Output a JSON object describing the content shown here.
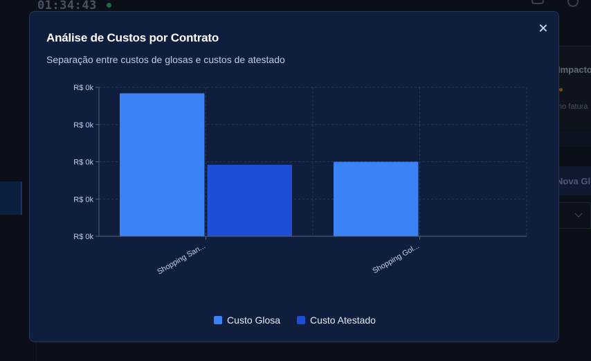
{
  "background": {
    "clock": "01:34:43",
    "panel_heading": "Impacto",
    "panel_text": "no fatura",
    "button_text": "Nova Gl"
  },
  "modal": {
    "title": "Análise de Custos por Contrato",
    "subtitle": "Separação entre custos de glosas e custos de atestado",
    "close_icon": "close-icon"
  },
  "colors": {
    "modal_bg": "#0f1e3d",
    "glosa": "#3b82f6",
    "atestado": "#1d4ed8",
    "grid": "#2b3b5c",
    "axis": "#5b6478",
    "tick_text": "#bcd0f0"
  },
  "chart_data": {
    "type": "bar",
    "categories": [
      "Shopping San...",
      "Shopping Gol..."
    ],
    "series": [
      {
        "name": "Custo Glosa",
        "color": "#3b82f6",
        "values": [
          0.96,
          0.5
        ]
      },
      {
        "name": "Custo Atestado",
        "color": "#1d4ed8",
        "values": [
          0.48,
          0
        ]
      }
    ],
    "yticks": [
      "R$ 0k",
      "R$ 0k",
      "R$ 0k",
      "R$ 0k",
      "R$ 0k"
    ],
    "ylim": [
      0,
      1
    ],
    "grid": true,
    "legend_position": "bottom",
    "units_note": "values are relative, shown against ticks labeled R$ 0k"
  }
}
